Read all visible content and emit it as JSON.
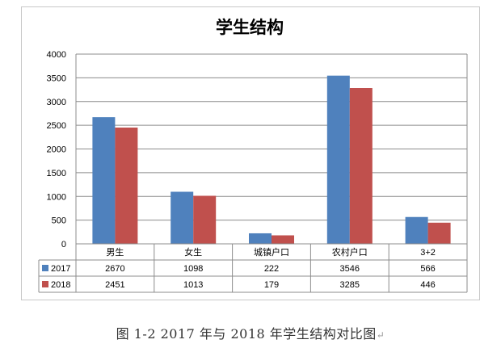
{
  "chart_data": {
    "type": "bar",
    "title": "学生结构",
    "categories": [
      "男生",
      "女生",
      "城镇户口",
      "农村户口",
      "3+2"
    ],
    "series": [
      {
        "name": "2017",
        "values": [
          2670,
          1098,
          222,
          3546,
          566
        ],
        "color": "#4f81bd"
      },
      {
        "name": "2018",
        "values": [
          2451,
          1013,
          179,
          3285,
          446
        ],
        "color": "#c0504d"
      }
    ],
    "ylim": [
      0,
      4000
    ],
    "yticks": [
      0,
      500,
      1000,
      1500,
      2000,
      2500,
      3000,
      3500,
      4000
    ],
    "grid": true,
    "legend": "data-table"
  },
  "caption": "图 1-2 2017 年与 2018 年学生结构对比图",
  "caption_mark": "↵"
}
